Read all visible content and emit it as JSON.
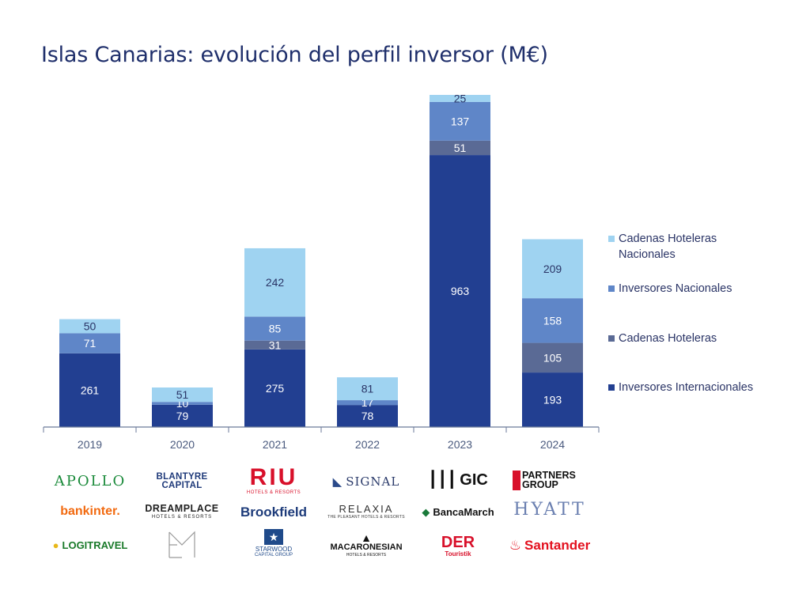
{
  "title": "Islas Canarias: evolución del perfil inversor (M€)",
  "chart_data": {
    "type": "bar",
    "stacked": true,
    "categories": [
      "2019",
      "2020",
      "2021",
      "2022",
      "2023",
      "2024"
    ],
    "series": [
      {
        "name": "Inversores Internacionales",
        "color": "#223f91",
        "values": [
          261,
          79,
          275,
          78,
          963,
          193
        ]
      },
      {
        "name": "Cadenas Hoteleras",
        "color": "#5a6a95",
        "values": [
          0,
          0,
          31,
          0,
          51,
          105
        ]
      },
      {
        "name": "Inversores Nacionales",
        "color": "#5f86c8",
        "values": [
          71,
          10,
          85,
          17,
          137,
          158
        ]
      },
      {
        "name": "Cadenas Hoteleras Nacionales",
        "color": "#9fd3f1",
        "values": [
          50,
          51,
          242,
          81,
          25,
          209
        ]
      }
    ],
    "legend": [
      "Cadenas Hoteleras Nacionales",
      "Inversores Nacionales",
      "Cadenas Hoteleras",
      "Inversores Internacionales"
    ],
    "legend_position": "right",
    "ylim": [
      0,
      1176
    ],
    "grid": false
  },
  "logos": {
    "col_2019": [
      "APOLLO",
      "bankinter.",
      "LOGITRAVEL"
    ],
    "col_2020": [
      "BLANTYRE CAPITAL",
      "DREAMPLACE",
      "HOTELS & RESORTS"
    ],
    "col_2021": [
      "RIU",
      "HOTELS & RESORTS",
      "Brookfield",
      "STARWOOD",
      "CAPITAL GROUP"
    ],
    "col_2022": [
      "SIGNAL",
      "RELAXIA",
      "THE PLEASANT HOTELS & RESORTS",
      "MACARONESIAN",
      "HOTELS & RESORTS"
    ],
    "col_2023": [
      "GIC",
      "BancaMarch",
      "DER",
      "Touristik"
    ],
    "col_2024": [
      "PARTNERS",
      "GROUP",
      "HYATT",
      "Santander"
    ]
  }
}
